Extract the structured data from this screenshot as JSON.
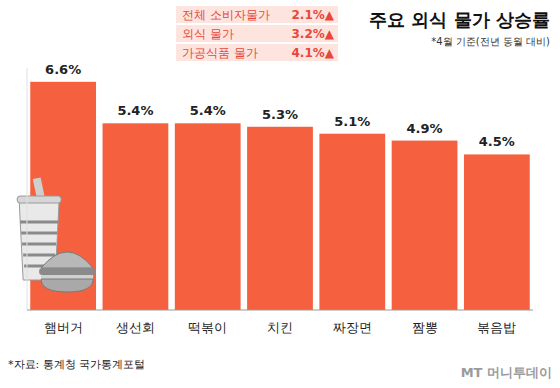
{
  "chart_data": {
    "type": "bar",
    "title": "주요 외식 물가 상승률",
    "subtitle": "*4월 기준(전년 동월 대비)",
    "categories": [
      "햄버거",
      "생선회",
      "떡볶이",
      "치킨",
      "짜장면",
      "짬뽕",
      "볶음밥"
    ],
    "values": [
      6.6,
      5.4,
      5.4,
      5.3,
      5.1,
      4.9,
      4.5
    ],
    "value_labels": [
      "6.6%",
      "5.4%",
      "5.4%",
      "5.3%",
      "5.1%",
      "4.9%",
      "4.5%"
    ],
    "color": "#f5603f",
    "ylim": [
      0,
      7
    ],
    "grid": false,
    "data_labels": true,
    "tick_labels": "x",
    "indicators": [
      {
        "label": "전체 소비자물가",
        "value": "2.1%▲"
      },
      {
        "label": "외식 물가",
        "value": "3.2%▲"
      },
      {
        "label": "가공식품 물가",
        "value": "4.1%▲"
      }
    ],
    "source": "*자료: 통계청 국가통계포털",
    "credit": "MT 머니투데이"
  }
}
